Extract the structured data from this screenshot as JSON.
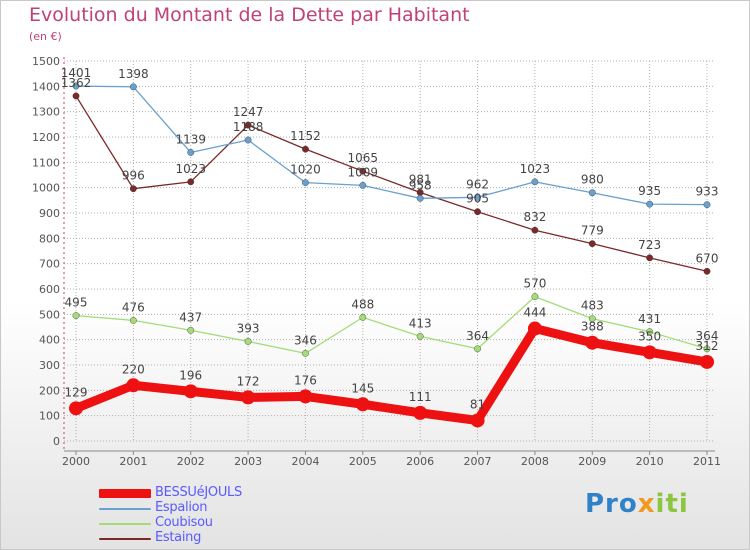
{
  "header": {
    "title": "Evolution du Montant de la Dette par Habitant",
    "subtitle": "(en €)"
  },
  "brand": {
    "part1": "Pro",
    "part2": "x",
    "part3": "iti"
  },
  "chart_data": {
    "type": "line",
    "title": "Evolution du Montant de la Dette par Habitant",
    "subtitle": "(en €)",
    "xlabel": "",
    "ylabel": "",
    "x": [
      "2000",
      "2001",
      "2002",
      "2003",
      "2004",
      "2005",
      "2006",
      "2007",
      "2008",
      "2009",
      "2010",
      "2011"
    ],
    "ylim": [
      0,
      1500
    ],
    "y_ticks": [
      0,
      100,
      200,
      300,
      400,
      500,
      600,
      700,
      800,
      900,
      1000,
      1100,
      1200,
      1300,
      1400,
      1500
    ],
    "grid": true,
    "legend_position": "bottom-left",
    "series": [
      {
        "name": "BESSUéJOULS",
        "color": "#ee1111",
        "values": [
          129,
          220,
          196,
          172,
          176,
          145,
          111,
          81,
          444,
          388,
          350,
          312
        ]
      },
      {
        "name": "Espalion",
        "color": "#6aa0cf",
        "values": [
          1401,
          1398,
          1139,
          1188,
          1020,
          1009,
          958,
          962,
          1023,
          980,
          935,
          933
        ]
      },
      {
        "name": "Coubisou",
        "color": "#a3dc78",
        "values": [
          495,
          476,
          437,
          393,
          346,
          488,
          413,
          364,
          570,
          483,
          431,
          364
        ]
      },
      {
        "name": "Estaing",
        "color": "#7a2a2a",
        "values": [
          1362,
          996,
          1023,
          1247,
          1152,
          1065,
          981,
          905,
          832,
          779,
          723,
          670
        ]
      }
    ]
  }
}
